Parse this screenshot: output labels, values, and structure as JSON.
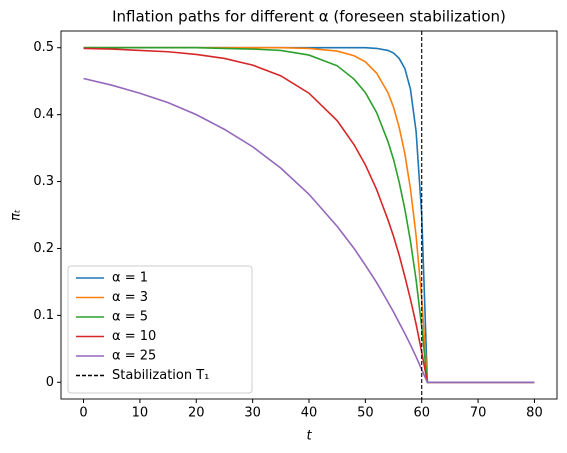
{
  "chart_data": {
    "type": "line",
    "title": "Inflation paths for different α (foreseen stabilization)",
    "xlabel": "t",
    "ylabel": "πₜ",
    "x": [
      0,
      5,
      10,
      15,
      20,
      25,
      30,
      35,
      40,
      45,
      48,
      50,
      52,
      54,
      55,
      56,
      57,
      58,
      59,
      60,
      61,
      70,
      80
    ],
    "series": [
      {
        "name": "α = 1",
        "color": "#1f77b4",
        "values": [
          0.5,
          0.5,
          0.5,
          0.5,
          0.5,
          0.5,
          0.5,
          0.5,
          0.5,
          0.5,
          0.5,
          0.5,
          0.499,
          0.496,
          0.492,
          0.484,
          0.469,
          0.438,
          0.375,
          0.25,
          0,
          0,
          0
        ]
      },
      {
        "name": "α = 3",
        "color": "#ff7f0e",
        "values": [
          0.5,
          0.5,
          0.5,
          0.5,
          0.5,
          0.5,
          0.5,
          0.5,
          0.499,
          0.495,
          0.488,
          0.479,
          0.462,
          0.433,
          0.411,
          0.381,
          0.342,
          0.289,
          0.219,
          0.125,
          0,
          0,
          0
        ]
      },
      {
        "name": "α = 5",
        "color": "#2ca02c",
        "values": [
          0.5,
          0.5,
          0.5,
          0.5,
          0.5,
          0.499,
          0.498,
          0.496,
          0.489,
          0.473,
          0.453,
          0.433,
          0.403,
          0.36,
          0.333,
          0.299,
          0.259,
          0.211,
          0.153,
          0.083,
          0,
          0,
          0
        ]
      },
      {
        "name": "α = 10",
        "color": "#d62728",
        "values": [
          0.499,
          0.498,
          0.496,
          0.494,
          0.49,
          0.484,
          0.474,
          0.458,
          0.432,
          0.391,
          0.355,
          0.325,
          0.288,
          0.243,
          0.218,
          0.19,
          0.158,
          0.124,
          0.087,
          0.045,
          0,
          0,
          0
        ]
      },
      {
        "name": "α = 25",
        "color": "#9467bd",
        "values": [
          0.454,
          0.444,
          0.432,
          0.418,
          0.4,
          0.378,
          0.352,
          0.32,
          0.281,
          0.233,
          0.2,
          0.175,
          0.149,
          0.12,
          0.105,
          0.089,
          0.073,
          0.056,
          0.038,
          0.019,
          0,
          0,
          0
        ]
      }
    ],
    "vline": {
      "x": 60,
      "name": "Stabilization T₁",
      "color": "#000000"
    },
    "xlim": [
      -4,
      84
    ],
    "xticks": [
      0,
      10,
      20,
      30,
      40,
      50,
      60,
      70,
      80
    ],
    "ylim": [
      -0.025,
      0.525
    ],
    "yticks": [
      0.0,
      0.1,
      0.2,
      0.3,
      0.4,
      0.5
    ],
    "legend": "lower left",
    "grid": false
  }
}
